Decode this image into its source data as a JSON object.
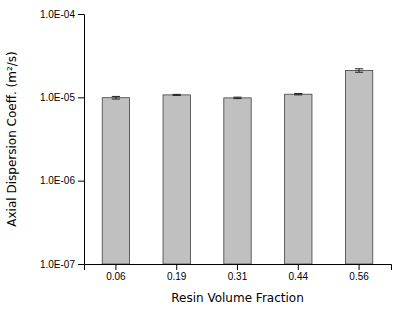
{
  "chart_data": {
    "type": "bar",
    "categories": [
      "0.06",
      "0.19",
      "0.31",
      "0.44",
      "0.56"
    ],
    "values": [
      9.9e-06,
      1.07e-05,
      9.85e-06,
      1.09e-05,
      2.1e-05
    ],
    "errors": [
      3.5e-07,
      1.5e-07,
      2e-07,
      2e-07,
      1e-06
    ],
    "color": "#c0c0c0",
    "xlabel": "Resin Volume Fraction",
    "ylabel": "Axial Dispersion Coeff. (m²/s)",
    "log": "y",
    "ylim": [
      1e-07,
      0.0001
    ],
    "yticks": [
      {
        "value": 1e-07,
        "label": "1.0E-07"
      },
      {
        "value": 1e-06,
        "label": "1.0E-06"
      },
      {
        "value": 1e-05,
        "label": "1.0E-05"
      },
      {
        "value": 0.0001,
        "label": "1.0E-04"
      }
    ]
  }
}
